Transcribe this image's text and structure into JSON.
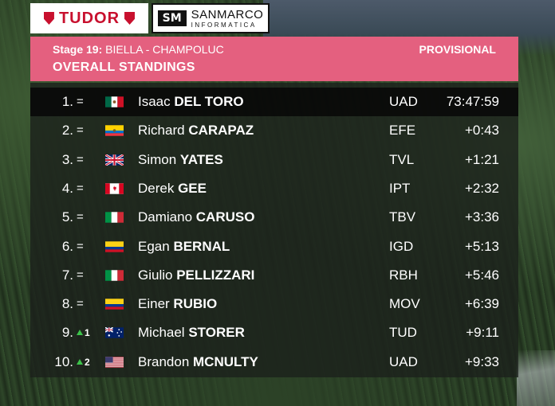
{
  "sponsors": {
    "tudor": "TUDOR",
    "sanmarco_name": "SANMARCO",
    "sanmarco_sub": "INFORMATICA",
    "sanmarco_mark": "SM"
  },
  "header": {
    "stage_label": "Stage 19:",
    "stage_route": "BIELLA - CHAMPOLUC",
    "status": "PROVISIONAL",
    "title": "OVERALL STANDINGS"
  },
  "standings": [
    {
      "pos": "1.",
      "change": "=",
      "change_num": "",
      "flag": "mexico-flag",
      "first": "Isaac",
      "last": "DEL TORO",
      "team": "UAD",
      "time": "73:47:59"
    },
    {
      "pos": "2.",
      "change": "=",
      "change_num": "",
      "flag": "ecuador-flag",
      "first": "Richard",
      "last": "CARAPAZ",
      "team": "EFE",
      "time": "+0:43"
    },
    {
      "pos": "3.",
      "change": "=",
      "change_num": "",
      "flag": "uk-flag",
      "first": "Simon",
      "last": "YATES",
      "team": "TVL",
      "time": "+1:21"
    },
    {
      "pos": "4.",
      "change": "=",
      "change_num": "",
      "flag": "canada-flag",
      "first": "Derek",
      "last": "GEE",
      "team": "IPT",
      "time": "+2:32"
    },
    {
      "pos": "5.",
      "change": "=",
      "change_num": "",
      "flag": "italy-flag",
      "first": "Damiano",
      "last": "CARUSO",
      "team": "TBV",
      "time": "+3:36"
    },
    {
      "pos": "6.",
      "change": "=",
      "change_num": "",
      "flag": "colombia-flag",
      "first": "Egan",
      "last": "BERNAL",
      "team": "IGD",
      "time": "+5:13"
    },
    {
      "pos": "7.",
      "change": "=",
      "change_num": "",
      "flag": "italy-flag",
      "first": "Giulio",
      "last": "PELLIZZARI",
      "team": "RBH",
      "time": "+5:46"
    },
    {
      "pos": "8.",
      "change": "=",
      "change_num": "",
      "flag": "colombia-flag",
      "first": "Einer",
      "last": "RUBIO",
      "team": "MOV",
      "time": "+6:39"
    },
    {
      "pos": "9.",
      "change": "up",
      "change_num": "1",
      "flag": "australia-flag",
      "first": "Michael",
      "last": "STORER",
      "team": "TUD",
      "time": "+9:11"
    },
    {
      "pos": "10.",
      "change": "up",
      "change_num": "2",
      "flag": "usa-flag",
      "first": "Brandon",
      "last": "MCNULTY",
      "team": "UAD",
      "time": "+9:33"
    }
  ],
  "colors": {
    "header_pink": "#e4607f",
    "tudor_red": "#c8102e",
    "up_arrow_green": "#3cc34a"
  }
}
